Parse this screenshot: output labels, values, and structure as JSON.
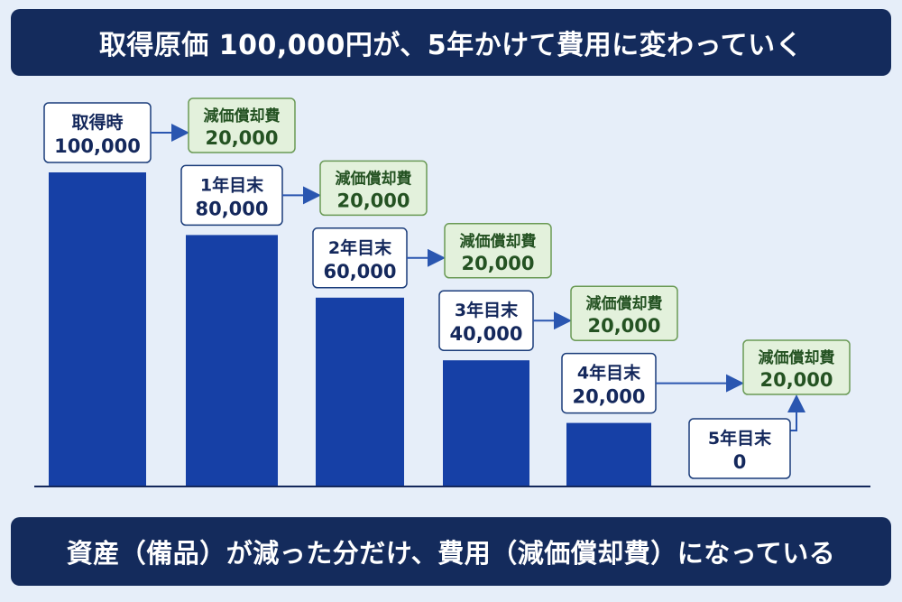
{
  "title": "取得原価 100,000円が、5年かけて費用に変わっていく",
  "footer": "資産（備品）が減った分だけ、費用（減価償却費）になっている",
  "colors": {
    "banner": "#142b5c",
    "bar": "#1640a6",
    "label_border": "#1a3c7a",
    "label_text": "#14285c",
    "expense_fill": "#e3f1dc",
    "expense_border": "#6a9a55",
    "expense_text": "#245222",
    "arrow": "#2a56b0",
    "background": "#e6eef9"
  },
  "chart_data": {
    "type": "bar",
    "categories": [
      "取得時",
      "1年目末",
      "2年目末",
      "3年目末",
      "4年目末",
      "5年目末"
    ],
    "values": [
      100000,
      80000,
      60000,
      40000,
      20000,
      0
    ],
    "value_labels": [
      "100,000",
      "80,000",
      "60,000",
      "40,000",
      "20,000",
      "0"
    ],
    "ylim": [
      0,
      100000
    ],
    "annotations": [
      {
        "label": "減価償却費",
        "value": "20,000"
      },
      {
        "label": "減価償却費",
        "value": "20,000"
      },
      {
        "label": "減価償却費",
        "value": "20,000"
      },
      {
        "label": "減価償却費",
        "value": "20,000"
      },
      {
        "label": "減価償却費",
        "value": "20,000"
      }
    ]
  }
}
